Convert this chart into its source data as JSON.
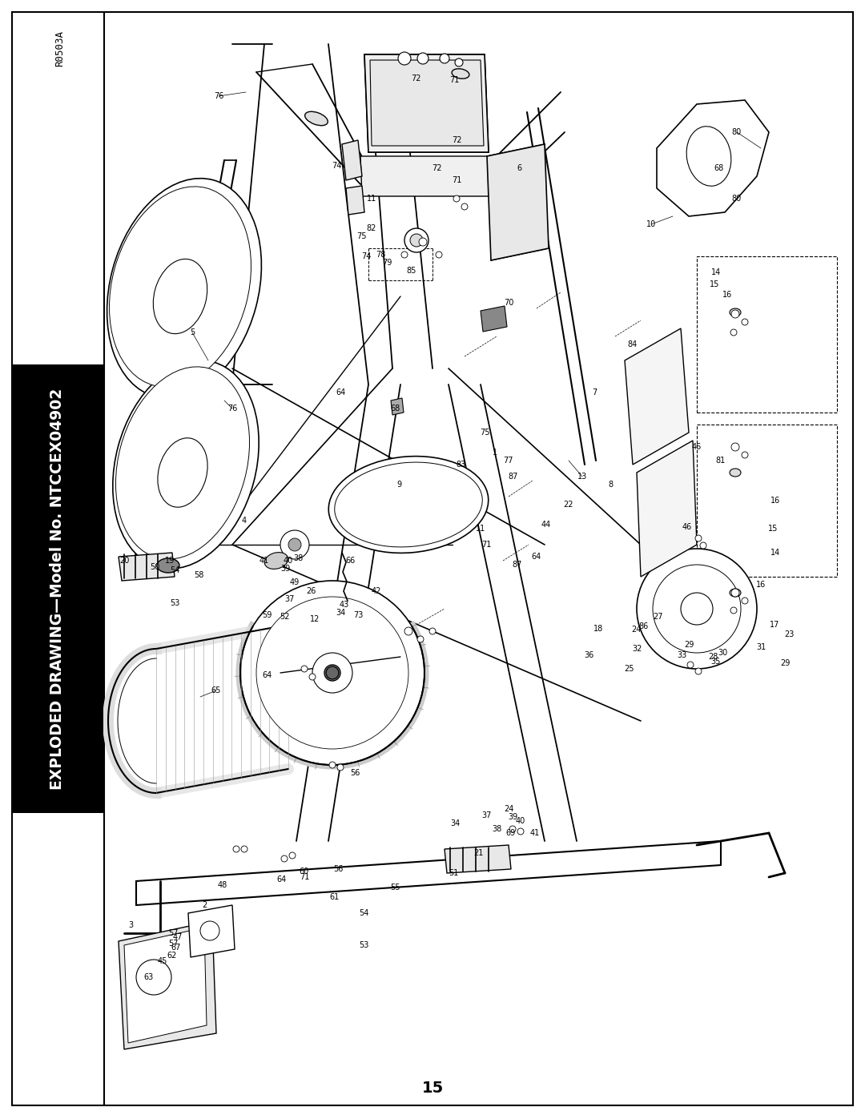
{
  "title_text": "EXPLODED DRAWING—Model No. NTCCEX04902",
  "page_number": "15",
  "revision_code": "R0503A",
  "bg_color": "#ffffff",
  "border_color": "#000000",
  "text_color": "#000000",
  "fig_width": 10.8,
  "fig_height": 13.97,
  "dpi": 100
}
